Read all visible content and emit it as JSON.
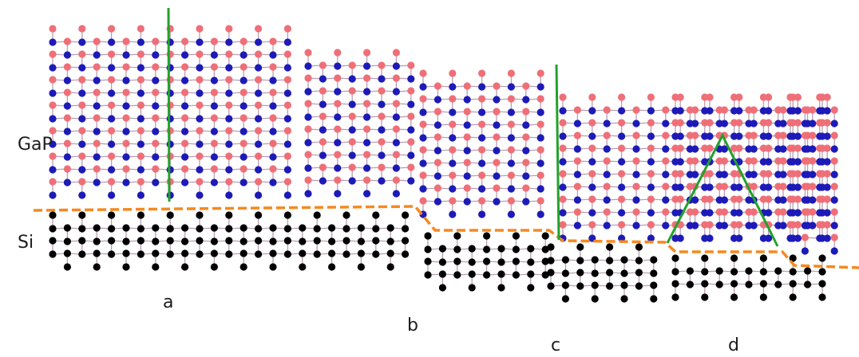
{
  "labels": {
    "material_top": "GaP",
    "material_bottom": "Si",
    "case_a": "a",
    "case_b": "b",
    "case_c": "c",
    "case_d": "d"
  },
  "colors": {
    "ga_atom": "#ef6f78",
    "p_atom": "#1d1ab8",
    "si_atom": "#000000",
    "bond": "#b8a0b4",
    "defect_line": "#22a22a",
    "interface_line": "#f5891f"
  }
}
